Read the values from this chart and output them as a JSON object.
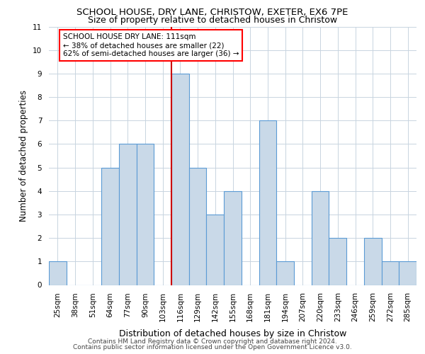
{
  "title1": "SCHOOL HOUSE, DRY LANE, CHRISTOW, EXETER, EX6 7PE",
  "title2": "Size of property relative to detached houses in Christow",
  "xlabel": "Distribution of detached houses by size in Christow",
  "ylabel": "Number of detached properties",
  "categories": [
    "25sqm",
    "38sqm",
    "51sqm",
    "64sqm",
    "77sqm",
    "90sqm",
    "103sqm",
    "116sqm",
    "129sqm",
    "142sqm",
    "155sqm",
    "168sqm",
    "181sqm",
    "194sqm",
    "207sqm",
    "220sqm",
    "233sqm",
    "246sqm",
    "259sqm",
    "272sqm",
    "285sqm"
  ],
  "values": [
    1,
    0,
    0,
    5,
    6,
    6,
    0,
    9,
    5,
    3,
    4,
    0,
    7,
    1,
    0,
    4,
    2,
    0,
    2,
    1,
    1
  ],
  "bar_color": "#c9d9e8",
  "bar_edge_color": "#5b9bd5",
  "annotation_text": "SCHOOL HOUSE DRY LANE: 111sqm\n← 38% of detached houses are smaller (22)\n62% of semi-detached houses are larger (36) →",
  "ylim": [
    0,
    11
  ],
  "yticks": [
    0,
    1,
    2,
    3,
    4,
    5,
    6,
    7,
    8,
    9,
    10,
    11
  ],
  "footer1": "Contains HM Land Registry data © Crown copyright and database right 2024.",
  "footer2": "Contains public sector information licensed under the Open Government Licence v3.0.",
  "background_color": "#ffffff",
  "grid_color": "#c8d4e0",
  "ref_line_x": 6.5,
  "ref_line_color": "#cc0000",
  "title1_fontsize": 9.5,
  "title2_fontsize": 9.0,
  "ylabel_fontsize": 8.5,
  "xlabel_fontsize": 9.0,
  "tick_fontsize": 7.5,
  "annot_fontsize": 7.5,
  "footer_fontsize": 6.5
}
